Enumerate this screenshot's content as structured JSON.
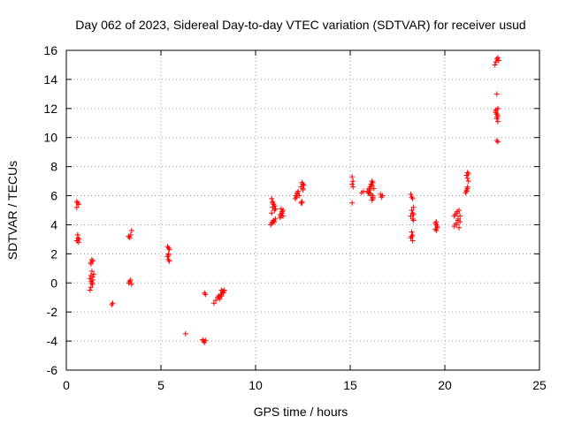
{
  "chart_data": {
    "type": "scatter",
    "title": "Day 062 of 2023, Sidereal Day-to-day VTEC variation (SDTVAR) for receiver usud",
    "xlabel": "GPS time / hours",
    "ylabel": "SDTVAR / TECUs",
    "xlim": [
      0,
      25
    ],
    "ylim": [
      -6,
      16
    ],
    "xticks": [
      0,
      5,
      10,
      15,
      20,
      25
    ],
    "yticks": [
      -6,
      -4,
      -2,
      0,
      2,
      4,
      6,
      8,
      10,
      12,
      14,
      16
    ],
    "grid": true,
    "marker": "+",
    "color": "#ff0000",
    "series": [
      {
        "name": "SDTVAR",
        "x": [
          0.55,
          0.6,
          0.65,
          0.55,
          0.6,
          0.62,
          0.68,
          0.55,
          0.6,
          0.65,
          0.58,
          1.25,
          1.3,
          1.35,
          1.4,
          1.45,
          1.3,
          1.35,
          1.4,
          1.3,
          1.35,
          1.4,
          1.32,
          1.38,
          1.3,
          1.25,
          2.4,
          2.45,
          3.3,
          3.4,
          3.45,
          3.35,
          3.3,
          3.4,
          3.35,
          3.45,
          3.3,
          5.35,
          5.4,
          5.45,
          5.4,
          5.35,
          5.4,
          5.45,
          5.4,
          6.3,
          7.2,
          7.25,
          7.3,
          7.35,
          7.3,
          7.35,
          7.8,
          7.9,
          8.0,
          8.05,
          8.1,
          8.15,
          8.2,
          8.25,
          8.3,
          8.35,
          8.3,
          8.2,
          8.1,
          10.8,
          10.85,
          10.9,
          10.95,
          11.0,
          11.05,
          10.85,
          10.9,
          10.95,
          10.9,
          11.0,
          10.85,
          10.9,
          11.0,
          11.05,
          11.3,
          11.35,
          11.4,
          11.45,
          11.35,
          11.4,
          11.3,
          11.45,
          12.1,
          12.15,
          12.2,
          12.25,
          12.3,
          12.15,
          12.2,
          12.4,
          12.45,
          12.5,
          12.55,
          12.45,
          12.5,
          12.4,
          12.45,
          12.5,
          15.1,
          15.15,
          15.1,
          15.15,
          15.1,
          15.6,
          15.7,
          15.9,
          16.0,
          16.05,
          16.1,
          16.15,
          16.2,
          16.0,
          16.1,
          16.2,
          16.25,
          16.15,
          16.05,
          16.1,
          16.2,
          15.95,
          16.15,
          16.2,
          16.6,
          16.7,
          16.65,
          18.2,
          18.25,
          18.3,
          18.35,
          18.25,
          18.3,
          18.2,
          18.3,
          18.35,
          18.25,
          18.3,
          18.2,
          18.3,
          18.25,
          18.35,
          19.5,
          19.55,
          19.6,
          19.5,
          19.55,
          19.6,
          19.55,
          20.5,
          20.6,
          20.7,
          20.8,
          20.75,
          20.65,
          20.55,
          20.7,
          20.8,
          20.75,
          20.6,
          20.5,
          20.65,
          21.1,
          21.15,
          21.2,
          21.25,
          21.2,
          21.15,
          21.2,
          21.25,
          21.15,
          21.2,
          22.65,
          22.7,
          22.75,
          22.8,
          22.85,
          22.75,
          22.8,
          22.7,
          22.75,
          22.8,
          22.75,
          22.8,
          22.7,
          22.75,
          22.8,
          22.7,
          22.75,
          22.8
        ],
        "y": [
          5.6,
          5.5,
          5.4,
          5.2,
          3.3,
          3.1,
          3.0,
          2.9,
          3.3,
          2.8,
          2.9,
          -0.5,
          -0.3,
          0.0,
          0.2,
          0.6,
          1.4,
          1.6,
          1.5,
          1.3,
          0.8,
          0.4,
          0.1,
          -0.1,
          0.5,
          0.3,
          -1.5,
          -1.4,
          3.2,
          3.3,
          3.6,
          3.1,
          0.0,
          0.2,
          0.1,
          -0.1,
          3.2,
          2.5,
          2.4,
          2.3,
          2.0,
          1.8,
          1.6,
          1.5,
          1.9,
          -3.5,
          -3.9,
          -4.0,
          -4.1,
          -3.95,
          -0.7,
          -0.8,
          -1.4,
          -1.2,
          -1.0,
          -0.9,
          -1.1,
          -0.8,
          -0.5,
          -0.6,
          -0.7,
          -0.5,
          -0.6,
          -0.9,
          -1.0,
          4.0,
          4.1,
          4.2,
          4.3,
          4.2,
          4.4,
          5.8,
          5.6,
          5.4,
          5.2,
          5.0,
          4.8,
          5.5,
          5.3,
          5.1,
          4.5,
          4.6,
          4.8,
          5.0,
          5.1,
          4.9,
          4.7,
          4.6,
          5.8,
          6.0,
          6.2,
          6.3,
          6.0,
          5.9,
          6.1,
          5.5,
          5.6,
          6.5,
          6.7,
          6.9,
          6.8,
          6.6,
          5.5,
          6.4,
          7.3,
          7.0,
          6.8,
          6.6,
          5.5,
          6.2,
          6.3,
          6.3,
          6.5,
          6.6,
          6.8,
          7.0,
          6.9,
          6.2,
          6.0,
          5.8,
          6.5,
          6.7,
          6.4,
          6.1,
          5.9,
          6.2,
          5.7,
          6.0,
          6.1,
          6.0,
          5.9,
          6.1,
          5.9,
          5.8,
          5.2,
          5.0,
          4.8,
          4.6,
          4.4,
          4.3,
          3.5,
          3.3,
          3.1,
          2.9,
          3.2,
          4.7,
          4.1,
          4.0,
          3.8,
          3.7,
          4.2,
          3.9,
          3.6,
          3.9,
          4.1,
          4.3,
          4.6,
          5.0,
          4.9,
          4.7,
          4.4,
          4.2,
          3.8,
          4.0,
          4.6,
          4.8,
          6.2,
          6.4,
          6.6,
          7.0,
          7.2,
          7.4,
          7.6,
          7.5,
          6.3,
          6.5,
          15.0,
          15.2,
          15.4,
          15.5,
          15.3,
          13.0,
          12.0,
          11.8,
          11.6,
          11.5,
          11.3,
          11.1,
          11.7,
          9.8,
          9.7,
          11.9,
          11.4,
          12.0
        ]
      }
    ]
  }
}
